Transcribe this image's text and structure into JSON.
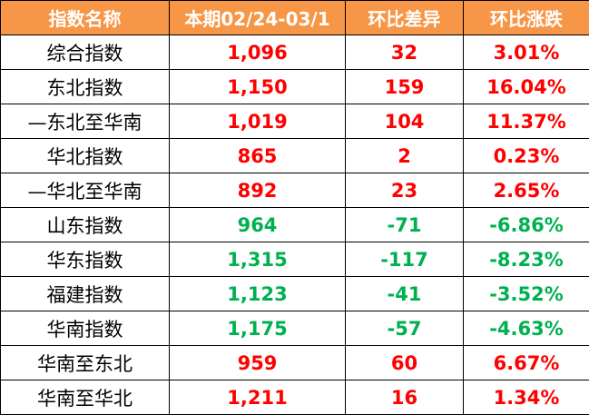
{
  "table": {
    "header": [
      "指数名称",
      "本期02/24-03/1",
      "环比差异",
      "环比涨跌"
    ],
    "rows": [
      [
        "综合指数",
        "1,096",
        "32",
        "3.01%"
      ],
      [
        "东北指数",
        "1,150",
        "159",
        "16.04%"
      ],
      [
        "—东北至华南",
        "1,019",
        "104",
        "11.37%"
      ],
      [
        "华北指数",
        "865",
        "2",
        "0.23%"
      ],
      [
        "—华北至华南",
        "892",
        "23",
        "2.65%"
      ],
      [
        "山东指数",
        "964",
        "-71",
        "-6.86%"
      ],
      [
        "华东指数",
        "1,315",
        "-117",
        "-8.23%"
      ],
      [
        "福建指数",
        "1,123",
        "-41",
        "-3.52%"
      ],
      [
        "华南指数",
        "1,175",
        "-57",
        "-4.63%"
      ],
      [
        "华南至东北",
        "959",
        "60",
        "6.67%"
      ],
      [
        "华南至华北",
        "1,211",
        "16",
        "1.34%"
      ]
    ],
    "header_color": "#f79646",
    "up_color": "#ff0000",
    "down_color": "#00b050"
  }
}
